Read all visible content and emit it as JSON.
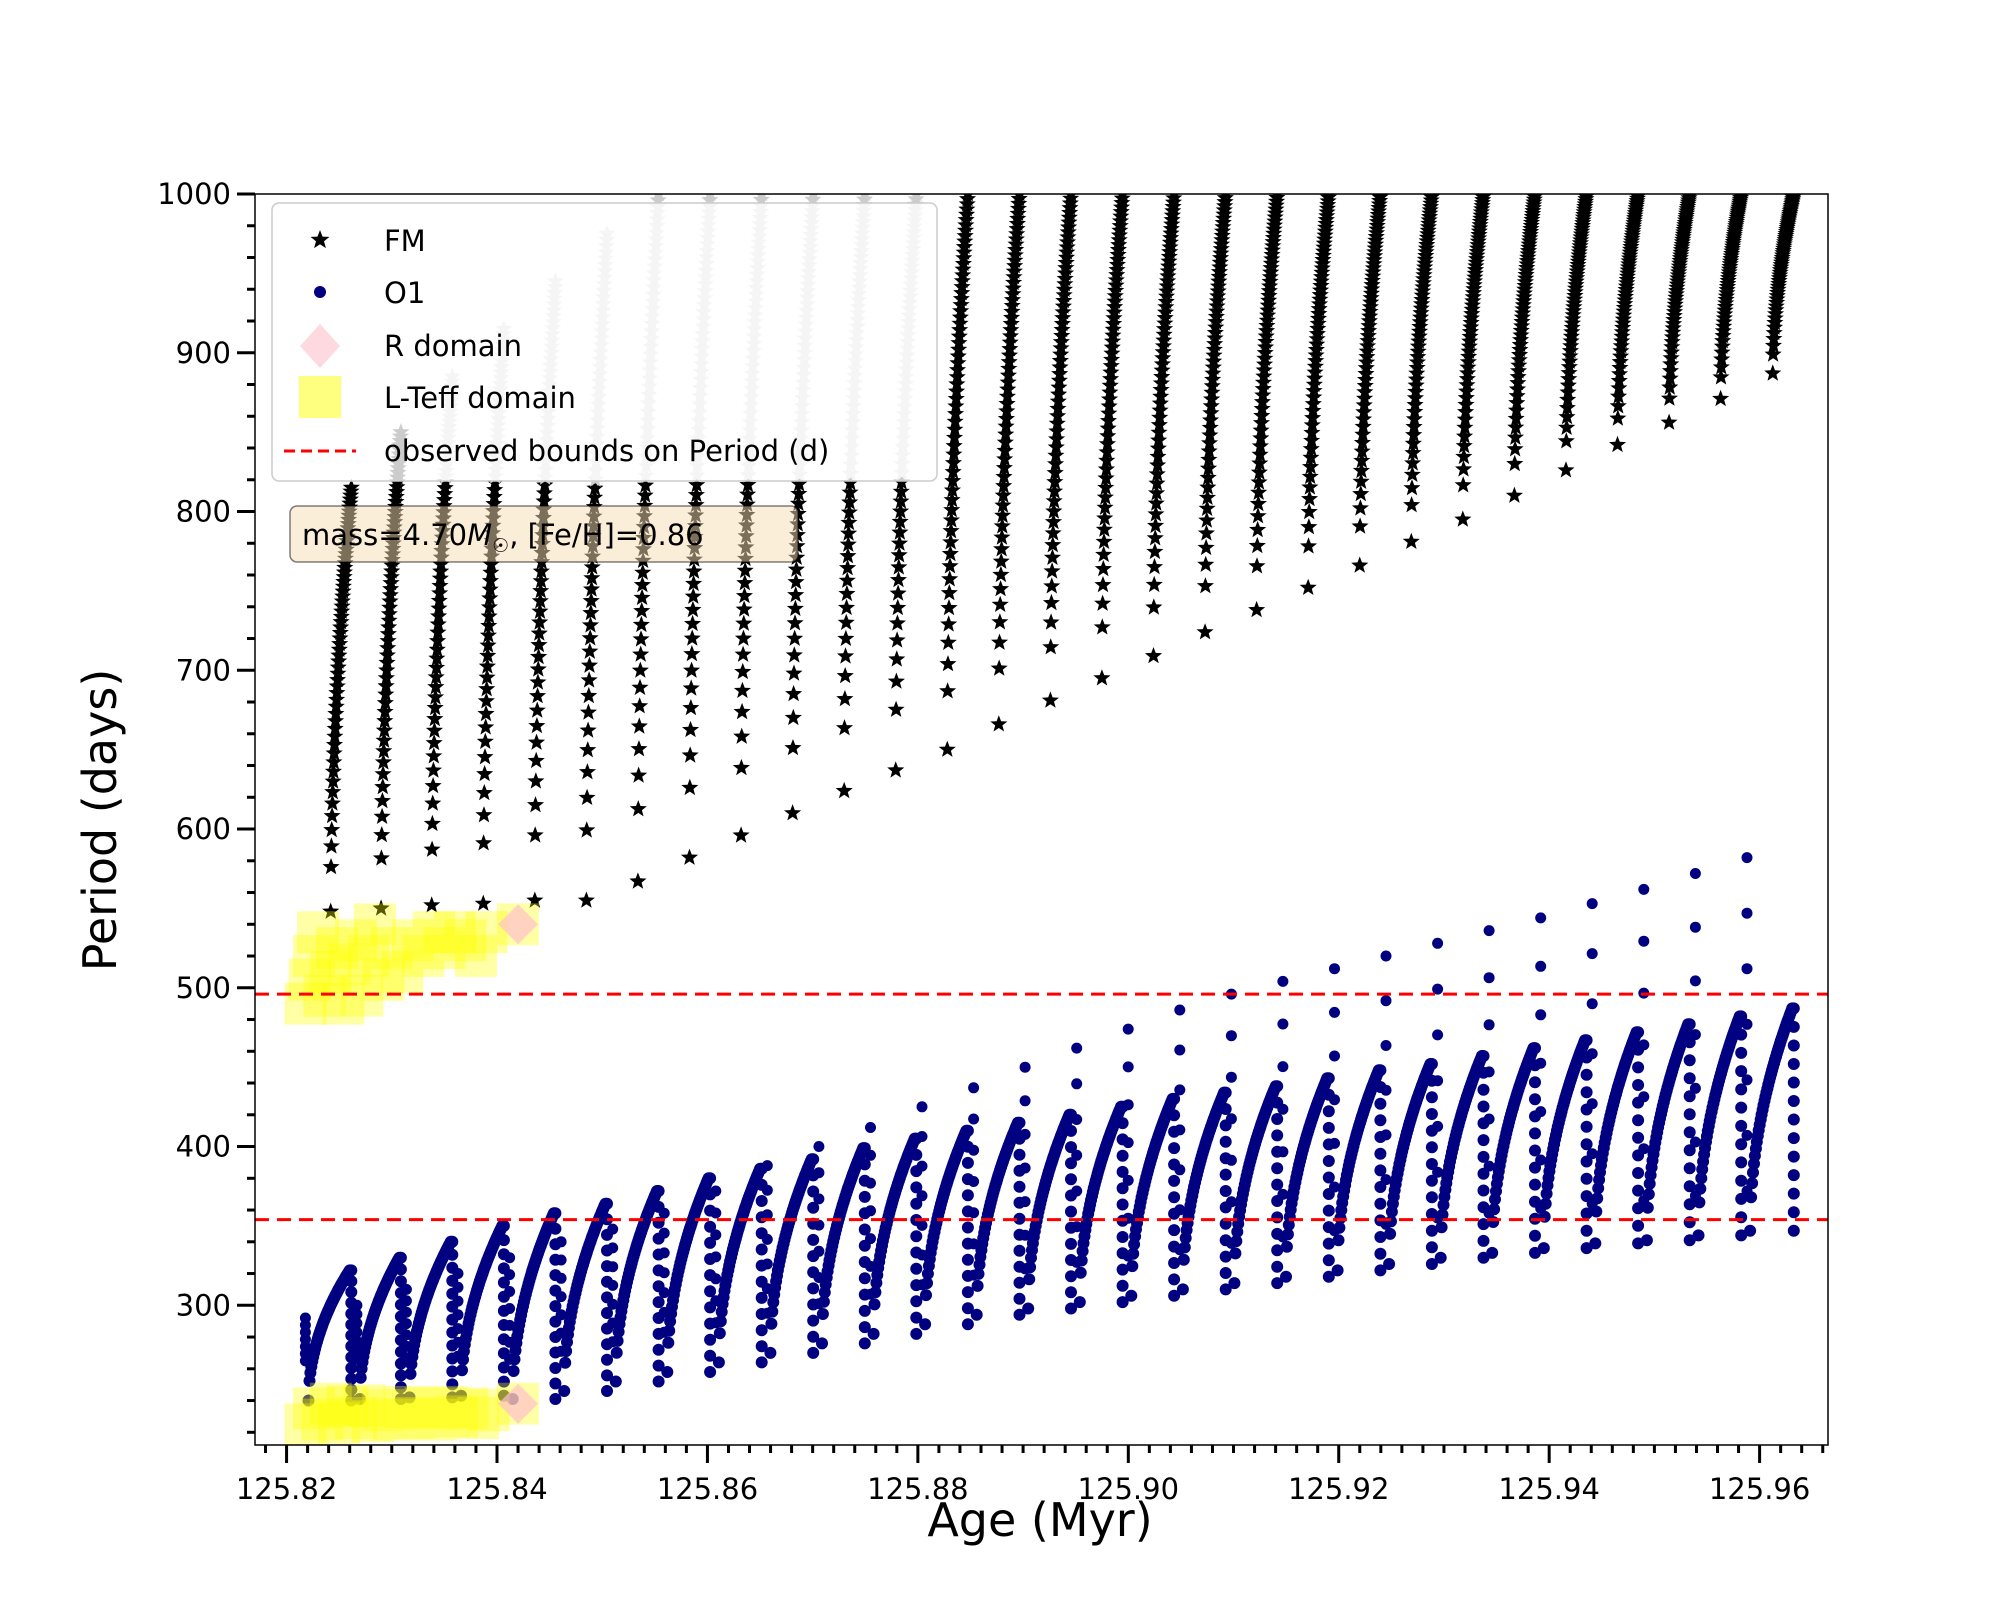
{
  "chart_data": {
    "type": "scatter",
    "title": "",
    "xlabel": "Age (Myr)",
    "ylabel": "Period (days)",
    "xlim": [
      125.817,
      125.9665
    ],
    "ylim": [
      212,
      1000
    ],
    "xticks": [
      125.82,
      125.84,
      125.86,
      125.88,
      125.9,
      125.92,
      125.94,
      125.96
    ],
    "xtick_labels": [
      "125.82",
      "125.84",
      "125.86",
      "125.88",
      "125.90",
      "125.92",
      "125.94",
      "125.96"
    ],
    "yticks": [
      300,
      400,
      500,
      600,
      700,
      800,
      900,
      1000
    ],
    "ytick_labels": [
      "300",
      "400",
      "500",
      "600",
      "700",
      "800",
      "900",
      "1000"
    ],
    "grid": false,
    "legend_position": "top-left",
    "annotation": {
      "text_prefix": "mass=4.70",
      "symbol": "M",
      "subscript": "☉",
      "text_suffix": ", [Fe/H]=0.86"
    },
    "observed_bounds": [
      496,
      354
    ],
    "colors": {
      "fm": "#000000",
      "fm_faded": "#cccccc",
      "o1": "#000080",
      "r_domain": "#ffc0cb",
      "lteff_domain": "#ffff00",
      "bounds": "#ff0000"
    },
    "series": [
      {
        "name": "FM",
        "marker": "star",
        "cycles": [
          {
            "x_start": 125.8215,
            "x_end": 125.8264,
            "y_low": 548,
            "y_high": 815
          },
          {
            "x_start": 125.8264,
            "x_end": 125.8311,
            "y_low": 550,
            "y_high": 850
          },
          {
            "x_start": 125.8311,
            "x_end": 125.836,
            "y_low": 552,
            "y_high": 885
          },
          {
            "x_start": 125.836,
            "x_end": 125.8409,
            "y_low": 553,
            "y_high": 915
          },
          {
            "x_start": 125.8409,
            "x_end": 125.8458,
            "y_low": 555,
            "y_high": 945
          },
          {
            "x_start": 125.8458,
            "x_end": 125.8507,
            "y_low": 555,
            "y_high": 975
          },
          {
            "x_start": 125.8507,
            "x_end": 125.8556,
            "y_low": 567,
            "y_high": 1000
          },
          {
            "x_start": 125.8556,
            "x_end": 125.8605,
            "y_low": 582,
            "y_high": 1000
          },
          {
            "x_start": 125.8605,
            "x_end": 125.8654,
            "y_low": 596,
            "y_high": 1000
          },
          {
            "x_start": 125.8654,
            "x_end": 125.8703,
            "y_low": 610,
            "y_high": 1000
          },
          {
            "x_start": 125.8703,
            "x_end": 125.8752,
            "y_low": 624,
            "y_high": 1000
          },
          {
            "x_start": 125.8752,
            "x_end": 125.8801,
            "y_low": 637,
            "y_high": 1000
          },
          {
            "x_start": 125.8801,
            "x_end": 125.885,
            "y_low": 650,
            "y_high": 1000
          },
          {
            "x_start": 125.885,
            "x_end": 125.8899,
            "y_low": 666,
            "y_high": 1000
          },
          {
            "x_start": 125.8899,
            "x_end": 125.8948,
            "y_low": 681,
            "y_high": 1000
          },
          {
            "x_start": 125.8948,
            "x_end": 125.8997,
            "y_low": 695,
            "y_high": 1000
          },
          {
            "x_start": 125.8997,
            "x_end": 125.9046,
            "y_low": 709,
            "y_high": 1000
          },
          {
            "x_start": 125.9046,
            "x_end": 125.9095,
            "y_low": 724,
            "y_high": 1000
          },
          {
            "x_start": 125.9095,
            "x_end": 125.9144,
            "y_low": 738,
            "y_high": 1000
          },
          {
            "x_start": 125.9144,
            "x_end": 125.9193,
            "y_low": 752,
            "y_high": 1000
          },
          {
            "x_start": 125.9193,
            "x_end": 125.9242,
            "y_low": 766,
            "y_high": 1000
          },
          {
            "x_start": 125.9242,
            "x_end": 125.9291,
            "y_low": 781,
            "y_high": 1000
          },
          {
            "x_start": 125.9291,
            "x_end": 125.934,
            "y_low": 795,
            "y_high": 1000
          },
          {
            "x_start": 125.934,
            "x_end": 125.9389,
            "y_low": 810,
            "y_high": 1000
          },
          {
            "x_start": 125.9389,
            "x_end": 125.9438,
            "y_low": 826,
            "y_high": 1000
          },
          {
            "x_start": 125.9438,
            "x_end": 125.9487,
            "y_low": 842,
            "y_high": 1000
          },
          {
            "x_start": 125.9487,
            "x_end": 125.9536,
            "y_low": 856,
            "y_high": 1000
          },
          {
            "x_start": 125.9536,
            "x_end": 125.9585,
            "y_low": 871,
            "y_high": 1000
          },
          {
            "x_start": 125.9585,
            "x_end": 125.9635,
            "y_low": 887,
            "y_high": 1000
          }
        ]
      },
      {
        "name": "O1",
        "marker": "circle",
        "cycles": [
          {
            "x_start": 125.8215,
            "x_end": 125.8264,
            "y_low": 240,
            "y_high": 322,
            "y_spike": 292
          },
          {
            "x_start": 125.8264,
            "x_end": 125.8311,
            "y_low": 241,
            "y_high": 330,
            "y_spike": 300
          },
          {
            "x_start": 125.8311,
            "x_end": 125.836,
            "y_low": 242,
            "y_high": 340,
            "y_spike": 310
          },
          {
            "x_start": 125.836,
            "x_end": 125.8409,
            "y_low": 243,
            "y_high": 350,
            "y_spike": 320
          },
          {
            "x_start": 125.8409,
            "x_end": 125.8458,
            "y_low": 241,
            "y_high": 358,
            "y_spike": 330
          },
          {
            "x_start": 125.8458,
            "x_end": 125.8507,
            "y_low": 246,
            "y_high": 364,
            "y_spike": 340
          },
          {
            "x_start": 125.8507,
            "x_end": 125.8556,
            "y_low": 252,
            "y_high": 372,
            "y_spike": 348
          },
          {
            "x_start": 125.8556,
            "x_end": 125.8605,
            "y_low": 258,
            "y_high": 380,
            "y_spike": 358
          },
          {
            "x_start": 125.8605,
            "x_end": 125.8654,
            "y_low": 264,
            "y_high": 386,
            "y_spike": 372
          },
          {
            "x_start": 125.8654,
            "x_end": 125.8703,
            "y_low": 270,
            "y_high": 392,
            "y_spike": 388
          },
          {
            "x_start": 125.8703,
            "x_end": 125.8752,
            "y_low": 276,
            "y_high": 399,
            "y_spike": 400
          },
          {
            "x_start": 125.8752,
            "x_end": 125.8801,
            "y_low": 282,
            "y_high": 405,
            "y_spike": 412
          },
          {
            "x_start": 125.8801,
            "x_end": 125.885,
            "y_low": 288,
            "y_high": 410,
            "y_spike": 425
          },
          {
            "x_start": 125.885,
            "x_end": 125.8899,
            "y_low": 294,
            "y_high": 415,
            "y_spike": 437
          },
          {
            "x_start": 125.8899,
            "x_end": 125.8948,
            "y_low": 298,
            "y_high": 420,
            "y_spike": 450
          },
          {
            "x_start": 125.8948,
            "x_end": 125.8997,
            "y_low": 302,
            "y_high": 425,
            "y_spike": 462
          },
          {
            "x_start": 125.8997,
            "x_end": 125.9046,
            "y_low": 306,
            "y_high": 430,
            "y_spike": 474
          },
          {
            "x_start": 125.9046,
            "x_end": 125.9095,
            "y_low": 310,
            "y_high": 434,
            "y_spike": 486
          },
          {
            "x_start": 125.9095,
            "x_end": 125.9144,
            "y_low": 314,
            "y_high": 438,
            "y_spike": 496
          },
          {
            "x_start": 125.9144,
            "x_end": 125.9193,
            "y_low": 318,
            "y_high": 443,
            "y_spike": 504
          },
          {
            "x_start": 125.9193,
            "x_end": 125.9242,
            "y_low": 322,
            "y_high": 448,
            "y_spike": 512
          },
          {
            "x_start": 125.9242,
            "x_end": 125.9291,
            "y_low": 326,
            "y_high": 452,
            "y_spike": 520
          },
          {
            "x_start": 125.9291,
            "x_end": 125.934,
            "y_low": 330,
            "y_high": 457,
            "y_spike": 528
          },
          {
            "x_start": 125.934,
            "x_end": 125.9389,
            "y_low": 333,
            "y_high": 462,
            "y_spike": 536
          },
          {
            "x_start": 125.9389,
            "x_end": 125.9438,
            "y_low": 336,
            "y_high": 467,
            "y_spike": 544
          },
          {
            "x_start": 125.9438,
            "x_end": 125.9487,
            "y_low": 339,
            "y_high": 472,
            "y_spike": 553
          },
          {
            "x_start": 125.9487,
            "x_end": 125.9536,
            "y_low": 341,
            "y_high": 477,
            "y_spike": 562
          },
          {
            "x_start": 125.9536,
            "x_end": 125.9585,
            "y_low": 344,
            "y_high": 482,
            "y_spike": 572
          },
          {
            "x_start": 125.9585,
            "x_end": 125.9635,
            "y_low": 347,
            "y_high": 487,
            "y_spike": 582
          }
        ]
      },
      {
        "name": "R domain",
        "marker": "diamond",
        "points": [
          {
            "x": 125.842,
            "y": 540
          },
          {
            "x": 125.842,
            "y": 238
          }
        ]
      },
      {
        "name": "L-Teff domain",
        "marker": "square",
        "points": [
          {
            "x": 125.8218,
            "y": 490
          },
          {
            "x": 125.8222,
            "y": 505
          },
          {
            "x": 125.8226,
            "y": 520
          },
          {
            "x": 125.823,
            "y": 535
          },
          {
            "x": 125.8236,
            "y": 495
          },
          {
            "x": 125.8242,
            "y": 510
          },
          {
            "x": 125.8248,
            "y": 525
          },
          {
            "x": 125.8254,
            "y": 490
          },
          {
            "x": 125.826,
            "y": 515
          },
          {
            "x": 125.8266,
            "y": 530
          },
          {
            "x": 125.8272,
            "y": 495
          },
          {
            "x": 125.8278,
            "y": 520
          },
          {
            "x": 125.8284,
            "y": 540
          },
          {
            "x": 125.8292,
            "y": 505
          },
          {
            "x": 125.83,
            "y": 525
          },
          {
            "x": 125.831,
            "y": 510
          },
          {
            "x": 125.832,
            "y": 530
          },
          {
            "x": 125.833,
            "y": 520
          },
          {
            "x": 125.834,
            "y": 535
          },
          {
            "x": 125.835,
            "y": 525
          },
          {
            "x": 125.836,
            "y": 535
          },
          {
            "x": 125.837,
            "y": 530
          },
          {
            "x": 125.838,
            "y": 520
          },
          {
            "x": 125.839,
            "y": 535
          },
          {
            "x": 125.842,
            "y": 540
          },
          {
            "x": 125.8218,
            "y": 225
          },
          {
            "x": 125.8226,
            "y": 235
          },
          {
            "x": 125.8234,
            "y": 228
          },
          {
            "x": 125.8242,
            "y": 238
          },
          {
            "x": 125.825,
            "y": 226
          },
          {
            "x": 125.8258,
            "y": 236
          },
          {
            "x": 125.8266,
            "y": 229
          },
          {
            "x": 125.8274,
            "y": 237
          },
          {
            "x": 125.8282,
            "y": 227
          },
          {
            "x": 125.8292,
            "y": 234
          },
          {
            "x": 125.8302,
            "y": 228
          },
          {
            "x": 125.8312,
            "y": 236
          },
          {
            "x": 125.8322,
            "y": 229
          },
          {
            "x": 125.8332,
            "y": 235
          },
          {
            "x": 125.8342,
            "y": 228
          },
          {
            "x": 125.8352,
            "y": 236
          },
          {
            "x": 125.8362,
            "y": 230
          },
          {
            "x": 125.8372,
            "y": 235
          },
          {
            "x": 125.8382,
            "y": 229
          },
          {
            "x": 125.8392,
            "y": 234
          },
          {
            "x": 125.842,
            "y": 238
          }
        ]
      },
      {
        "name": "observed bounds on Period (d)",
        "marker": "dashed-line"
      }
    ]
  }
}
